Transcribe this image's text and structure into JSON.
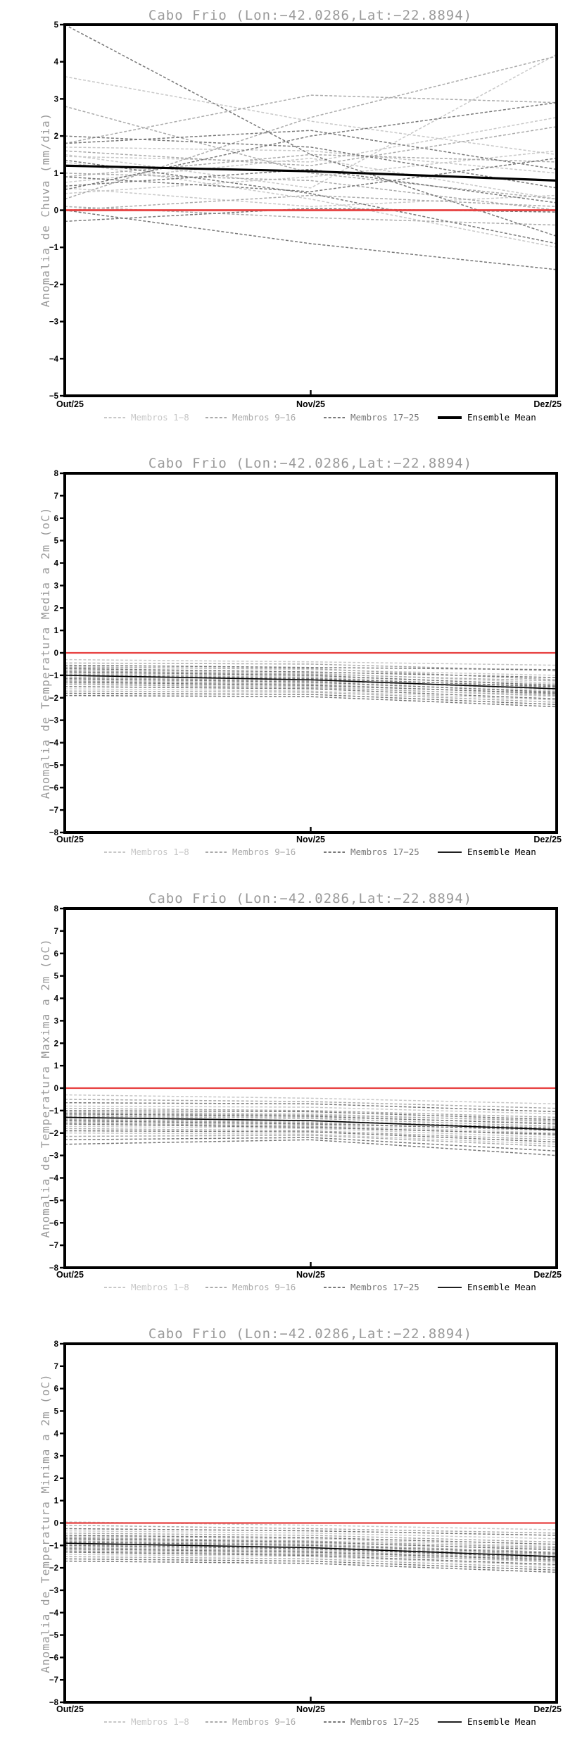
{
  "page": {
    "station_title": "Cabo Frio (Lon:−42.0286,Lat:−22.8894)"
  },
  "colors": {
    "title_gray": "#9a9a9a",
    "zero_line_red": "#e74040",
    "ensemble_mean_black": "#000000",
    "member_group_light": "#c8c8c8",
    "member_group_medium": "#aaaaaa",
    "member_group_dark": "#787878"
  },
  "x_axis": {
    "labels": [
      "Out/25",
      "Nov/25",
      "Dez/25"
    ]
  },
  "legend": {
    "items": [
      "Membros 1−8",
      "Membros 9−16",
      "Membros 17−25",
      "Ensemble Mean"
    ]
  },
  "chart_data": [
    {
      "type": "line",
      "title": "Cabo Frio (Lon:−42.0286,Lat:−22.8894)",
      "ylabel": "Anomalia de Chuva (mm/dia)",
      "x": [
        "Out/25",
        "Nov/25",
        "Dez/25"
      ],
      "ylim": [
        -5,
        5
      ],
      "ytick_step": 1,
      "grid": false,
      "legend_position": "bottom",
      "zero_line": {
        "value": 0,
        "color": "#e74040"
      },
      "member_groups": [
        {
          "name": "Membros 1−8",
          "color": "#c8c8c8",
          "style": "dashed",
          "members": [
            [
              3.6,
              2.4,
              1.5
            ],
            [
              1.5,
              0.6,
              4.2
            ],
            [
              1.45,
              1.3,
              2.5
            ],
            [
              1.3,
              0.3,
              -1.0
            ],
            [
              0.75,
              1.4,
              0.3
            ],
            [
              0.6,
              0.1,
              0.4
            ],
            [
              0.45,
              0.9,
              1.6
            ],
            [
              1.7,
              1.6,
              1.0
            ]
          ]
        },
        {
          "name": "Membros 9−16",
          "color": "#aaaaaa",
          "style": "dashed",
          "members": [
            [
              2.8,
              1.0,
              0.3
            ],
            [
              1.8,
              3.1,
              2.9
            ],
            [
              0.3,
              2.5,
              4.15
            ],
            [
              1.0,
              0.8,
              0.0
            ],
            [
              0.1,
              -0.2,
              -0.4
            ],
            [
              1.6,
              1.2,
              2.25
            ],
            [
              0.9,
              1.5,
              1.3
            ],
            [
              0.0,
              0.4,
              0.1
            ]
          ]
        },
        {
          "name": "Membros 17−25",
          "color": "#787878",
          "style": "dashed",
          "members": [
            [
              5.0,
              1.5,
              -0.7
            ],
            [
              1.8,
              2.15,
              1.1
            ],
            [
              0.55,
              2.0,
              2.9
            ],
            [
              0.0,
              -0.9,
              -1.6
            ],
            [
              -0.3,
              0.05,
              -0.05
            ],
            [
              0.9,
              0.5,
              1.4
            ],
            [
              2.0,
              1.7,
              0.6
            ],
            [
              0.65,
              1.1,
              0.2
            ],
            [
              1.35,
              0.45,
              -0.9
            ]
          ]
        }
      ],
      "ensemble_mean": {
        "name": "Ensemble Mean",
        "color": "#000000",
        "style": "solid",
        "values": [
          1.2,
          1.05,
          0.8
        ]
      }
    },
    {
      "type": "line",
      "title": "Cabo Frio (Lon:−42.0286,Lat:−22.8894)",
      "ylabel": "Anomalia de Temperatura Media a 2m (oC)",
      "x": [
        "Out/25",
        "Nov/25",
        "Dez/25"
      ],
      "ylim": [
        -8,
        8
      ],
      "ytick_step": 1,
      "grid": false,
      "legend_position": "bottom",
      "zero_line": {
        "value": 0,
        "color": "#e74040"
      },
      "member_groups": [
        {
          "name": "Membros 1−8",
          "color": "#c8c8c8",
          "style": "dashed",
          "members": [
            [
              -0.3,
              -0.4,
              -0.55
            ],
            [
              -0.6,
              -0.75,
              -1.0
            ],
            [
              -0.75,
              -0.9,
              -1.35
            ],
            [
              -0.9,
              -1.05,
              -1.4
            ],
            [
              -1.05,
              -1.2,
              -1.65
            ],
            [
              -1.2,
              -1.35,
              -1.7
            ],
            [
              -1.35,
              -1.5,
              -1.95
            ],
            [
              -1.6,
              -1.7,
              -2.1
            ]
          ]
        },
        {
          "name": "Membros 9−16",
          "color": "#aaaaaa",
          "style": "dashed",
          "members": [
            [
              -0.45,
              -0.5,
              -0.8
            ],
            [
              -0.65,
              -0.7,
              -1.2
            ],
            [
              -0.8,
              -0.95,
              -1.25
            ],
            [
              -0.95,
              -1.1,
              -1.55
            ],
            [
              -1.1,
              -1.25,
              -1.6
            ],
            [
              -1.25,
              -1.4,
              -1.85
            ],
            [
              -1.4,
              -1.55,
              -1.9
            ],
            [
              -1.7,
              -1.75,
              -2.2
            ]
          ]
        },
        {
          "name": "Membros 17−25",
          "color": "#787878",
          "style": "dashed",
          "members": [
            [
              -0.55,
              -0.65,
              -0.75
            ],
            [
              -0.7,
              -0.85,
              -1.1
            ],
            [
              -0.85,
              -1.0,
              -1.45
            ],
            [
              -1.0,
              -1.15,
              -1.5
            ],
            [
              -1.15,
              -1.3,
              -1.75
            ],
            [
              -1.3,
              -1.45,
              -1.8
            ],
            [
              -1.5,
              -1.6,
              -2.05
            ],
            [
              -1.8,
              -1.85,
              -2.3
            ],
            [
              -1.9,
              -1.95,
              -2.4
            ]
          ]
        }
      ],
      "ensemble_mean": {
        "name": "Ensemble Mean",
        "color": "#000000",
        "style": "solid",
        "values": [
          -1.0,
          -1.2,
          -1.6
        ]
      }
    },
    {
      "type": "line",
      "title": "Cabo Frio (Lon:−42.0286,Lat:−22.8894)",
      "ylabel": "Anomalia de Temperatura Maxima a 2m (oC)",
      "x": [
        "Out/25",
        "Nov/25",
        "Dez/25"
      ],
      "ylim": [
        -8,
        8
      ],
      "ytick_step": 1,
      "grid": false,
      "legend_position": "bottom",
      "zero_line": {
        "value": 0,
        "color": "#e74040"
      },
      "member_groups": [
        {
          "name": "Membros 1−8",
          "color": "#c8c8c8",
          "style": "dashed",
          "members": [
            [
              -0.3,
              -0.45,
              -0.7
            ],
            [
              -0.8,
              -0.85,
              -1.15
            ],
            [
              -1.05,
              -1.15,
              -1.5
            ],
            [
              -1.2,
              -1.3,
              -1.55
            ],
            [
              -1.35,
              -1.5,
              -1.75
            ],
            [
              -1.5,
              -1.65,
              -2.0
            ],
            [
              -1.7,
              -1.8,
              -2.2
            ],
            [
              -2.0,
              -2.05,
              -2.5
            ]
          ]
        },
        {
          "name": "Membros 9−16",
          "color": "#aaaaaa",
          "style": "dashed",
          "members": [
            [
              -0.5,
              -0.6,
              -0.9
            ],
            [
              -0.9,
              -1.0,
              -1.3
            ],
            [
              -1.1,
              -1.2,
              -1.45
            ],
            [
              -1.25,
              -1.35,
              -1.7
            ],
            [
              -1.4,
              -1.55,
              -1.9
            ],
            [
              -1.55,
              -1.7,
              -2.1
            ],
            [
              -1.8,
              -1.9,
              -2.3
            ],
            [
              -2.15,
              -2.1,
              -2.6
            ]
          ]
        },
        {
          "name": "Membros 17−25",
          "color": "#787878",
          "style": "dashed",
          "members": [
            [
              -0.65,
              -0.7,
              -1.05
            ],
            [
              -1.0,
              -1.05,
              -1.4
            ],
            [
              -1.15,
              -1.25,
              -1.6
            ],
            [
              -1.3,
              -1.45,
              -1.8
            ],
            [
              -1.45,
              -1.6,
              -1.85
            ],
            [
              -1.6,
              -1.75,
              -2.05
            ],
            [
              -1.9,
              -1.95,
              -2.4
            ],
            [
              -2.3,
              -2.2,
              -2.8
            ],
            [
              -2.5,
              -2.3,
              -3.0
            ]
          ]
        }
      ],
      "ensemble_mean": {
        "name": "Ensemble Mean",
        "color": "#000000",
        "style": "solid",
        "values": [
          -1.3,
          -1.45,
          -1.85
        ]
      }
    },
    {
      "type": "line",
      "title": "Cabo Frio (Lon:−42.0286,Lat:−22.8894)",
      "ylabel": "Anomalia de Temperatura Minima a 2m (oC)",
      "x": [
        "Out/25",
        "Nov/25",
        "Dez/25"
      ],
      "ylim": [
        -8,
        8
      ],
      "ytick_step": 1,
      "grid": false,
      "legend_position": "bottom",
      "zero_line": {
        "value": 0,
        "color": "#e74040"
      },
      "member_groups": [
        {
          "name": "Membros 1−8",
          "color": "#c8c8c8",
          "style": "dashed",
          "members": [
            [
              0.05,
              -0.1,
              -0.3
            ],
            [
              -0.35,
              -0.45,
              -0.7
            ],
            [
              -0.6,
              -0.7,
              -1.05
            ],
            [
              -0.75,
              -0.9,
              -1.15
            ],
            [
              -0.9,
              -1.05,
              -1.45
            ],
            [
              -1.05,
              -1.2,
              -1.5
            ],
            [
              -1.2,
              -1.35,
              -1.75
            ],
            [
              -1.4,
              -1.5,
              -1.9
            ]
          ]
        },
        {
          "name": "Membros 9−16",
          "color": "#aaaaaa",
          "style": "dashed",
          "members": [
            [
              -0.1,
              -0.25,
              -0.45
            ],
            [
              -0.45,
              -0.55,
              -0.85
            ],
            [
              -0.65,
              -0.8,
              -1.1
            ],
            [
              -0.8,
              -0.95,
              -1.3
            ],
            [
              -0.95,
              -1.1,
              -1.4
            ],
            [
              -1.1,
              -1.25,
              -1.6
            ],
            [
              -1.25,
              -1.4,
              -1.7
            ],
            [
              -1.5,
              -1.6,
              -2.0
            ]
          ]
        },
        {
          "name": "Membros 17−25",
          "color": "#787878",
          "style": "dashed",
          "members": [
            [
              -0.25,
              -0.35,
              -0.55
            ],
            [
              -0.55,
              -0.65,
              -0.95
            ],
            [
              -0.7,
              -0.85,
              -1.2
            ],
            [
              -0.85,
              -1.0,
              -1.35
            ],
            [
              -1.0,
              -1.15,
              -1.55
            ],
            [
              -1.15,
              -1.3,
              -1.65
            ],
            [
              -1.3,
              -1.45,
              -1.85
            ],
            [
              -1.6,
              -1.7,
              -2.1
            ],
            [
              -1.7,
              -1.8,
              -2.2
            ]
          ]
        }
      ],
      "ensemble_mean": {
        "name": "Ensemble Mean",
        "color": "#000000",
        "style": "solid",
        "values": [
          -0.9,
          -1.1,
          -1.5
        ]
      }
    }
  ]
}
